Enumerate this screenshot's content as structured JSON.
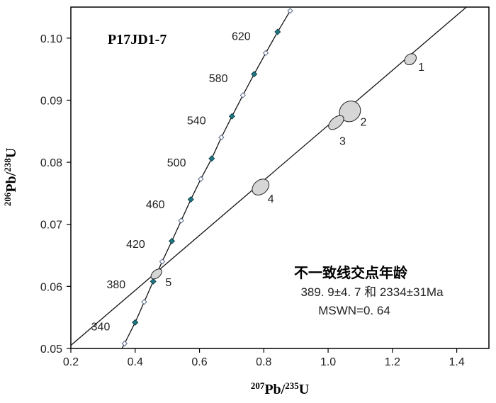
{
  "chart_data": {
    "type": "scatter",
    "title": "P17JD1-7",
    "xlabel": {
      "mass": "207",
      "el1": "Pb/",
      "mass2": "235",
      "el2": "U"
    },
    "ylabel": {
      "mass": "206",
      "el1": "Pb/",
      "mass2": "238",
      "el2": "U"
    },
    "xlim": [
      0.2,
      1.5
    ],
    "ylim": [
      0.05,
      0.105
    ],
    "xticks": [
      "0.2",
      "0.4",
      "0.6",
      "0.8",
      "1.0",
      "1.2",
      "1.4"
    ],
    "yticks": [
      "0.05",
      "0.06",
      "0.07",
      "0.08",
      "0.09",
      "0.10"
    ],
    "concordia": {
      "filled_markers": [
        {
          "age": "340",
          "x": 0.4,
          "y": 0.0542
        },
        {
          "age": "380",
          "x": 0.456,
          "y": 0.0608
        },
        {
          "age": "420",
          "x": 0.514,
          "y": 0.0673
        },
        {
          "age": "460",
          "x": 0.573,
          "y": 0.074
        },
        {
          "age": "500",
          "x": 0.638,
          "y": 0.0806
        },
        {
          "age": "540",
          "x": 0.701,
          "y": 0.0874
        },
        {
          "age": "580",
          "x": 0.77,
          "y": 0.0942
        },
        {
          "age": "620",
          "x": 0.843,
          "y": 0.101
        }
      ],
      "open_markers": [
        {
          "x": 0.367,
          "y": 0.0508
        },
        {
          "x": 0.428,
          "y": 0.0575
        },
        {
          "x": 0.484,
          "y": 0.064
        },
        {
          "x": 0.543,
          "y": 0.0706
        },
        {
          "x": 0.604,
          "y": 0.0773
        },
        {
          "x": 0.668,
          "y": 0.084
        },
        {
          "x": 0.735,
          "y": 0.0908
        },
        {
          "x": 0.806,
          "y": 0.0976
        },
        {
          "x": 0.882,
          "y": 0.1044
        }
      ]
    },
    "discordia": {
      "x1": 0.2,
      "y1": 0.0505,
      "x2": 1.43,
      "y2": 0.105
    },
    "ellipses": [
      {
        "label": "1",
        "x": 1.256,
        "y": 0.0966,
        "rx": 0.011,
        "ry": 0.0008,
        "label_x": 1.28,
        "label_y": 0.0954
      },
      {
        "label": "2",
        "x": 1.068,
        "y": 0.0882,
        "rx": 0.034,
        "ry": 0.0016,
        "label_x": 1.1,
        "label_y": 0.0866
      },
      {
        "label": "3",
        "x": 1.025,
        "y": 0.0864,
        "rx": 0.028,
        "ry": 0.0008,
        "label_x": 1.035,
        "label_y": 0.0835
      },
      {
        "label": "4",
        "x": 0.79,
        "y": 0.076,
        "rx": 0.029,
        "ry": 0.0011,
        "label_x": 0.812,
        "label_y": 0.0742
      },
      {
        "label": "5",
        "x": 0.466,
        "y": 0.062,
        "rx": 0.014,
        "ry": 0.0006,
        "label_x": 0.494,
        "label_y": 0.0607
      }
    ],
    "age_label_positions": [
      {
        "age": "340",
        "x": 0.322,
        "y": 0.0536
      },
      {
        "age": "380",
        "x": 0.37,
        "y": 0.0604
      },
      {
        "age": "420",
        "x": 0.431,
        "y": 0.0669
      },
      {
        "age": "460",
        "x": 0.492,
        "y": 0.0733
      },
      {
        "age": "500",
        "x": 0.558,
        "y": 0.08
      },
      {
        "age": "540",
        "x": 0.62,
        "y": 0.0868
      },
      {
        "age": "580",
        "x": 0.688,
        "y": 0.0936
      },
      {
        "age": "620",
        "x": 0.759,
        "y": 0.1004
      }
    ],
    "annotations": {
      "title": "不一致线交点年龄",
      "ages": "389. 9±4. 7 和 2334±31Ma",
      "mswd": "MSWN=0. 64"
    }
  }
}
